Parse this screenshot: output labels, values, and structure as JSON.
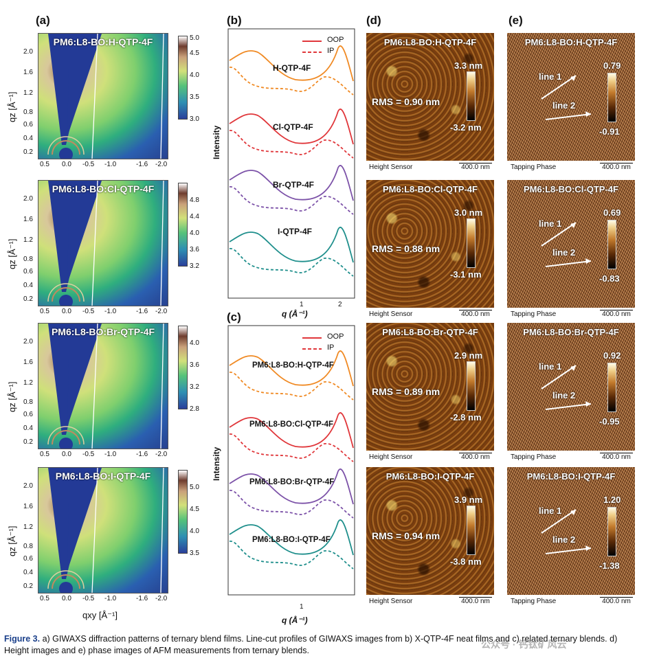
{
  "panels": {
    "a": "(a)",
    "b": "(b)",
    "c": "(c)",
    "d": "(d)",
    "e": "(e)"
  },
  "giwaxs": {
    "samples": [
      {
        "title": "PM6:L8-BO:H-QTP-4F",
        "cbar": [
          "4.5",
          "4.0",
          "3.5",
          "3.0"
        ],
        "cbar_top": "5.0"
      },
      {
        "title": "PM6:L8-BO:Cl-QTP-4F",
        "cbar": [
          "4.8",
          "4.4",
          "4.0",
          "3.6",
          "3.2"
        ],
        "cbar_top": ""
      },
      {
        "title": "PM6:L8-BO:Br-QTP-4F",
        "cbar": [
          "4.0",
          "3.6",
          "3.2",
          "2.8"
        ],
        "cbar_top": ""
      },
      {
        "title": "PM6:L8-BO:I-QTP-4F",
        "cbar": [
          "5.0",
          "4.5",
          "4.0",
          "3.5"
        ],
        "cbar_top": ""
      }
    ],
    "qz_ticks": [
      "2.0",
      "1.6",
      "1.2",
      "0.8",
      "0.6",
      "0.4",
      "0.2"
    ],
    "qxy_ticks": [
      "0.5",
      "0.0",
      "-0.5",
      "-1.0",
      "-1.6",
      "-2.0"
    ],
    "ylabel": "qz [Å⁻¹]",
    "xlabel": "qxy [Å⁻¹]"
  },
  "linecut_b": {
    "legend": [
      "OOP",
      "IP"
    ],
    "curves": [
      "H-QTP-4F",
      "Cl-QTP-4F",
      "Br-QTP-4F",
      "I-QTP-4F"
    ],
    "colors": [
      "#f08a24",
      "#e0363a",
      "#7c52a8",
      "#1f8f8c"
    ],
    "ylabel": "Intensity",
    "xticks": [
      "1",
      "2"
    ],
    "xlabel": "q (Å⁻¹)"
  },
  "linecut_c": {
    "legend": [
      "OOP",
      "IP"
    ],
    "curves": [
      "PM6:L8-BO:H-QTP-4F",
      "PM6:L8-BO:Cl-QTP-4F",
      "PM6:L8-BO:Br-QTP-4F",
      "PM6:L8-BO:I-QTP-4F"
    ],
    "ylabel": "Intensity",
    "xticks": [
      "1"
    ],
    "xlabel": "q (Å⁻¹)"
  },
  "afm_height": [
    {
      "title": "PM6:L8-BO:H-QTP-4F",
      "max": "3.3 nm",
      "min": "-3.2 nm",
      "rms": "RMS = 0.90 nm"
    },
    {
      "title": "PM6:L8-BO:Cl-QTP-4F",
      "max": "3.0 nm",
      "min": "-3.1 nm",
      "rms": "RMS = 0.88 nm"
    },
    {
      "title": "PM6:L8-BO:Br-QTP-4F",
      "max": "2.9 nm",
      "min": "-2.8 nm",
      "rms": "RMS = 0.89 nm"
    },
    {
      "title": "PM6:L8-BO:I-QTP-4F",
      "max": "3.9 nm",
      "min": "-3.8 nm",
      "rms": "RMS = 0.94 nm"
    }
  ],
  "afm_phase": [
    {
      "title": "PM6:L8-BO:H-QTP-4F",
      "max": "0.79",
      "min": "-0.91"
    },
    {
      "title": "PM6:L8-BO:Cl-QTP-4F",
      "max": "0.69",
      "min": "-0.83"
    },
    {
      "title": "PM6:L8-BO:Br-QTP-4F",
      "max": "0.92",
      "min": "-0.95"
    },
    {
      "title": "PM6:L8-BO:I-QTP-4F",
      "max": "1.20",
      "min": "-1.38"
    }
  ],
  "afm_labels": {
    "height_sensor": "Height Sensor",
    "tapping_phase": "Tapping Phase",
    "scale": "400.0 nm",
    "line1": "line 1",
    "line2": "line 2"
  },
  "caption": {
    "lead": "Figure 3.",
    "text": "a) GIWAXS diffraction patterns of ternary blend films. Line-cut profiles of GIWAXS images from b) X-QTP-4F neat films and c) related ternary blends. d) Height images and e) phase images of AFM measurements from ternary blends."
  },
  "watermark": "公众号 · 钙钛矿风云"
}
